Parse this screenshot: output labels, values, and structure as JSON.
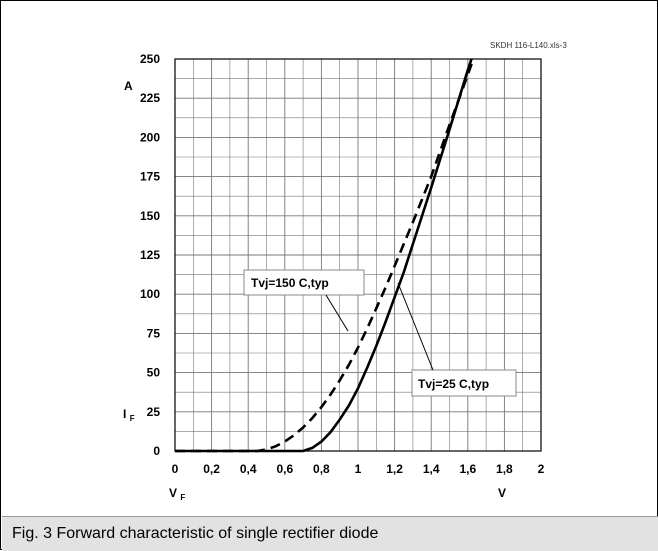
{
  "caption": "Fig. 3 Forward characteristic of single rectifier diode",
  "chart_data": {
    "type": "line",
    "source_tag": "SKDH 116-L140.xls-3",
    "xlim": [
      0,
      2
    ],
    "ylim": [
      0,
      250
    ],
    "x_ticks": [
      {
        "value": 0,
        "label": "0"
      },
      {
        "value": 0.2,
        "label": "0,2"
      },
      {
        "value": 0.4,
        "label": "0,4"
      },
      {
        "value": 0.6,
        "label": "0,6"
      },
      {
        "value": 0.8,
        "label": "0,8"
      },
      {
        "value": 1.0,
        "label": "1"
      },
      {
        "value": 1.2,
        "label": "1,2"
      },
      {
        "value": 1.4,
        "label": "1,4"
      },
      {
        "value": 1.6,
        "label": "1,6"
      },
      {
        "value": 1.8,
        "label": "1,8"
      },
      {
        "value": 2.0,
        "label": "2"
      }
    ],
    "y_ticks": [
      0,
      25,
      50,
      75,
      100,
      125,
      150,
      175,
      200,
      225,
      250
    ],
    "y_unit": "A",
    "x_unit": "V",
    "y_symbol": {
      "main": "I",
      "sub": "F"
    },
    "x_symbol": {
      "main": "V",
      "sub": "F"
    },
    "grid": true,
    "series": [
      {
        "name": "Tvj=150 C,typ",
        "style": "dashed",
        "color": "#000000",
        "points": [
          [
            0,
            0
          ],
          [
            0.45,
            0
          ],
          [
            0.5,
            1
          ],
          [
            0.55,
            3
          ],
          [
            0.6,
            6
          ],
          [
            0.65,
            10
          ],
          [
            0.7,
            15
          ],
          [
            0.75,
            21
          ],
          [
            0.8,
            28
          ],
          [
            0.85,
            36
          ],
          [
            0.9,
            45
          ],
          [
            0.95,
            55
          ],
          [
            1.0,
            66
          ],
          [
            1.05,
            78
          ],
          [
            1.1,
            91
          ],
          [
            1.15,
            104
          ],
          [
            1.2,
            118
          ],
          [
            1.3,
            146
          ],
          [
            1.4,
            175
          ],
          [
            1.5,
            208
          ],
          [
            1.6,
            240
          ],
          [
            1.63,
            250
          ]
        ]
      },
      {
        "name": "Tvj=25 C,typ",
        "style": "solid",
        "color": "#000000",
        "points": [
          [
            0,
            0
          ],
          [
            0.7,
            0
          ],
          [
            0.75,
            2
          ],
          [
            0.8,
            6
          ],
          [
            0.85,
            12
          ],
          [
            0.9,
            20
          ],
          [
            0.95,
            29
          ],
          [
            1.0,
            40
          ],
          [
            1.05,
            53
          ],
          [
            1.1,
            67
          ],
          [
            1.15,
            82
          ],
          [
            1.2,
            98
          ],
          [
            1.25,
            114
          ],
          [
            1.3,
            132
          ],
          [
            1.4,
            168
          ],
          [
            1.5,
            205
          ],
          [
            1.6,
            243
          ],
          [
            1.62,
            250
          ]
        ]
      }
    ],
    "annotations": [
      {
        "text": "Tvj=150 C,typ",
        "series": 0
      },
      {
        "text": "Tvj=25 C,typ",
        "series": 1
      }
    ]
  }
}
